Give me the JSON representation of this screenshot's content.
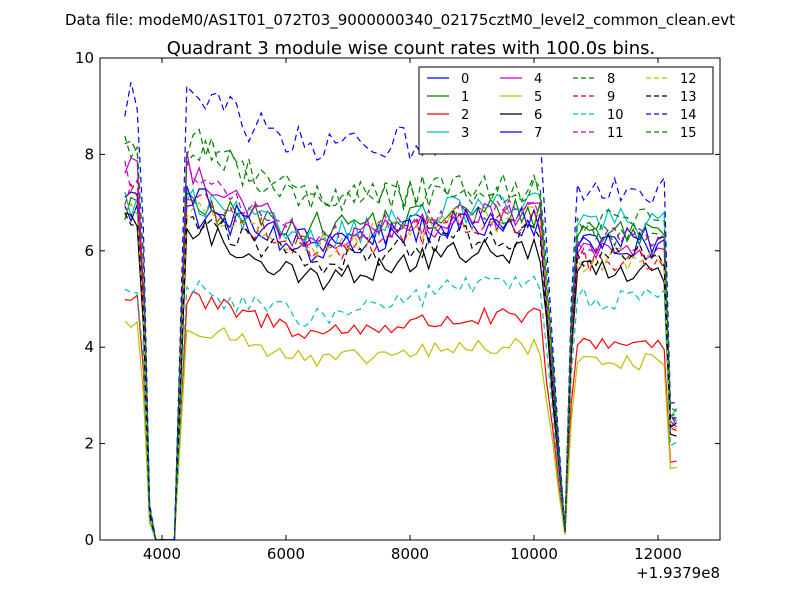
{
  "suptitle": "Data file: modeM0/AS1T01_072T03_9000000340_02175cztM0_level2_common_clean.evt",
  "chart_data": {
    "type": "line",
    "title": "Quadrant 3 module wise count rates with 100.0s bins.",
    "xlabel": "",
    "ylabel": "",
    "x_offset_label": "+1.9379e8",
    "xlim": [
      3000,
      13000
    ],
    "ylim": [
      0,
      10
    ],
    "xticks": [
      4000,
      6000,
      8000,
      10000,
      12000
    ],
    "yticks": [
      0,
      2,
      4,
      6,
      8,
      10
    ],
    "grid": false,
    "legend_placement": "top-right",
    "x_segments": [
      {
        "start": 3400,
        "end": 4300,
        "step": 100
      },
      {
        "start": 4400,
        "end": 10800,
        "step": 100
      },
      {
        "start": 10900,
        "end": 12300,
        "step": 100
      }
    ],
    "series": [
      {
        "name": "0",
        "color": "#0000ff",
        "dash": "solid",
        "levels": [
          6.8,
          6.2,
          6.6,
          6.2
        ]
      },
      {
        "name": "1",
        "color": "#008000",
        "dash": "solid",
        "levels": [
          6.9,
          6.5,
          6.8,
          6.4
        ]
      },
      {
        "name": "2",
        "color": "#ff0000",
        "dash": "solid",
        "levels": [
          5.0,
          4.3,
          4.6,
          4.1
        ]
      },
      {
        "name": "3",
        "color": "#00bfbf",
        "dash": "solid",
        "levels": [
          7.0,
          6.3,
          6.9,
          6.6
        ]
      },
      {
        "name": "4",
        "color": "#bf00bf",
        "dash": "solid",
        "levels": [
          7.8,
          6.1,
          6.7,
          6.0
        ]
      },
      {
        "name": "5",
        "color": "#bfbf00",
        "dash": "solid",
        "levels": [
          4.5,
          3.7,
          4.0,
          3.7
        ]
      },
      {
        "name": "6",
        "color": "#000000",
        "dash": "solid",
        "levels": [
          6.5,
          5.4,
          6.0,
          5.6
        ]
      },
      {
        "name": "7",
        "color": "#0000ff",
        "dash": "solid",
        "levels": [
          7.2,
          6.0,
          6.6,
          6.1
        ]
      },
      {
        "name": "8",
        "color": "#008000",
        "dash": "dashed",
        "levels": [
          8.2,
          7.1,
          7.3,
          6.3
        ]
      },
      {
        "name": "9",
        "color": "#ff0000",
        "dash": "dashed",
        "levels": [
          7.2,
          6.0,
          6.6,
          5.8
        ]
      },
      {
        "name": "10",
        "color": "#00bfbf",
        "dash": "dashed",
        "levels": [
          5.2,
          4.6,
          5.3,
          5.0
        ]
      },
      {
        "name": "11",
        "color": "#bf00bf",
        "dash": "dashed",
        "levels": [
          7.6,
          6.2,
          6.8,
          6.2
        ]
      },
      {
        "name": "12",
        "color": "#bfbf00",
        "dash": "dashed",
        "levels": [
          6.9,
          6.1,
          6.7,
          5.8
        ]
      },
      {
        "name": "13",
        "color": "#000000",
        "dash": "dashed",
        "levels": [
          6.7,
          5.7,
          6.3,
          5.9
        ]
      },
      {
        "name": "14",
        "color": "#0000ff",
        "dash": "dashed",
        "levels": [
          9.2,
          8.1,
          8.4,
          7.3
        ]
      },
      {
        "name": "15",
        "color": "#008000",
        "dash": "dashed",
        "levels": [
          8.3,
          7.0,
          7.3,
          6.6
        ]
      }
    ]
  }
}
